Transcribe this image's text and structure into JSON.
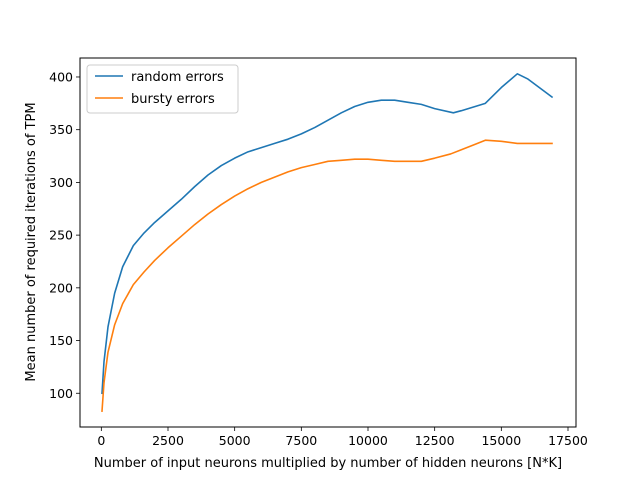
{
  "chart_data": {
    "type": "line",
    "title": "",
    "xlabel": "Number of input neurons multiplied by number of hidden neurons [N*K]",
    "ylabel": "Mean number of required iterations of TPM",
    "xlim": [
      -800,
      17800
    ],
    "ylim": [
      68,
      418
    ],
    "xticks": [
      0,
      2500,
      5000,
      7500,
      10000,
      12500,
      15000,
      17500
    ],
    "yticks": [
      100,
      150,
      200,
      250,
      300,
      350,
      400
    ],
    "grid": false,
    "legend_position": "top-left",
    "series": [
      {
        "name": "random errors",
        "color": "#1f77b4",
        "points": [
          [
            25,
            100
          ],
          [
            100,
            130
          ],
          [
            250,
            163
          ],
          [
            500,
            195
          ],
          [
            800,
            220
          ],
          [
            1200,
            240
          ],
          [
            1600,
            252
          ],
          [
            2000,
            262
          ],
          [
            2500,
            273
          ],
          [
            3000,
            284
          ],
          [
            3500,
            296
          ],
          [
            4000,
            307
          ],
          [
            4500,
            316
          ],
          [
            5000,
            323
          ],
          [
            5500,
            329
          ],
          [
            6000,
            333
          ],
          [
            6500,
            337
          ],
          [
            7000,
            341
          ],
          [
            7500,
            346
          ],
          [
            8000,
            352
          ],
          [
            8500,
            359
          ],
          [
            9000,
            366
          ],
          [
            9500,
            372
          ],
          [
            10000,
            376
          ],
          [
            10500,
            378
          ],
          [
            11000,
            378
          ],
          [
            11500,
            376
          ],
          [
            12000,
            374
          ],
          [
            12500,
            370
          ],
          [
            13200,
            366
          ],
          [
            13500,
            368
          ],
          [
            14400,
            375
          ],
          [
            15000,
            390
          ],
          [
            15600,
            403
          ],
          [
            16000,
            398
          ],
          [
            16900,
            381
          ]
        ]
      },
      {
        "name": "bursty errors",
        "color": "#ff7f0e",
        "points": [
          [
            25,
            83
          ],
          [
            100,
            110
          ],
          [
            250,
            139
          ],
          [
            500,
            165
          ],
          [
            800,
            185
          ],
          [
            1200,
            203
          ],
          [
            1600,
            215
          ],
          [
            2000,
            226
          ],
          [
            2500,
            238
          ],
          [
            3000,
            249
          ],
          [
            3500,
            260
          ],
          [
            4000,
            270
          ],
          [
            4500,
            279
          ],
          [
            5000,
            287
          ],
          [
            5500,
            294
          ],
          [
            6000,
            300
          ],
          [
            6500,
            305
          ],
          [
            7000,
            310
          ],
          [
            7500,
            314
          ],
          [
            8000,
            317
          ],
          [
            8500,
            320
          ],
          [
            9000,
            321
          ],
          [
            9500,
            322
          ],
          [
            10000,
            322
          ],
          [
            10500,
            321
          ],
          [
            11000,
            320
          ],
          [
            11500,
            320
          ],
          [
            12000,
            320
          ],
          [
            12500,
            323
          ],
          [
            13100,
            327
          ],
          [
            13500,
            331
          ],
          [
            14000,
            336
          ],
          [
            14400,
            340
          ],
          [
            15000,
            339
          ],
          [
            15600,
            337
          ],
          [
            16900,
            337
          ]
        ]
      }
    ]
  }
}
